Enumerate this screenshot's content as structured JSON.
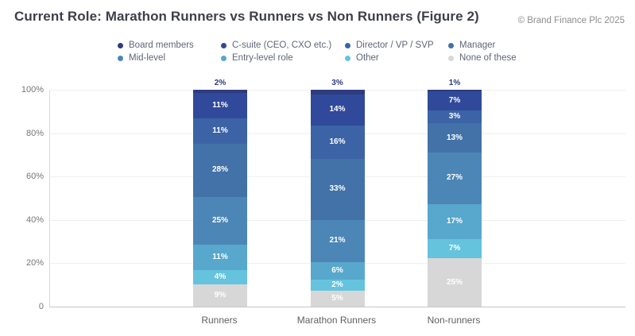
{
  "title": "Current Role: Marathon Runners vs Runners vs Non Runners (Figure 2)",
  "copyright": "© Brand Finance Plc 2025",
  "chart_data": {
    "type": "bar",
    "stacked": true,
    "unit": "%",
    "categories": [
      "Runners",
      "Marathon Runners",
      "Non-runners"
    ],
    "series": [
      {
        "name": "Board members",
        "color": "#2d3b7f",
        "values": [
          2,
          3,
          1
        ]
      },
      {
        "name": "C-suite (CEO, CXO etc.)",
        "color": "#30499a",
        "values": [
          11,
          14,
          7
        ]
      },
      {
        "name": "Director / VP / SVP",
        "color": "#3b63a5",
        "values": [
          11,
          16,
          3
        ]
      },
      {
        "name": "Manager",
        "color": "#4272a7",
        "values": [
          28,
          33,
          13
        ]
      },
      {
        "name": "Mid-level",
        "color": "#4c86b6",
        "values": [
          25,
          21,
          27
        ]
      },
      {
        "name": "Entry-level role",
        "color": "#58a7cc",
        "values": [
          11,
          6,
          17
        ]
      },
      {
        "name": "Other",
        "color": "#65c3de",
        "values": [
          4,
          2,
          7
        ]
      },
      {
        "name": "None of these",
        "color": "#d7d7d7",
        "values": [
          9,
          5,
          25
        ]
      }
    ],
    "ylim": [
      0,
      100
    ],
    "y_ticks": [
      "100%",
      "80%",
      "60%",
      "40%",
      "20%",
      "0"
    ],
    "grid": true,
    "legend_position": "top",
    "value_label_color": "#ffffff"
  }
}
